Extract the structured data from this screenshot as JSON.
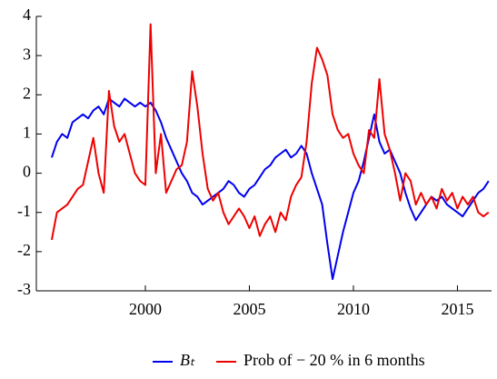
{
  "chart_data": {
    "type": "line",
    "x": [
      1995.5,
      1995.75,
      1996,
      1996.25,
      1996.5,
      1996.75,
      1997,
      1997.25,
      1997.5,
      1997.75,
      1998,
      1998.25,
      1998.5,
      1998.75,
      1999,
      1999.25,
      1999.5,
      1999.75,
      2000,
      2000.25,
      2000.5,
      2000.75,
      2001,
      2001.25,
      2001.5,
      2001.75,
      2002,
      2002.25,
      2002.5,
      2002.75,
      2003,
      2003.25,
      2003.5,
      2003.75,
      2004,
      2004.25,
      2004.5,
      2004.75,
      2005,
      2005.25,
      2005.5,
      2005.75,
      2006,
      2006.25,
      2006.5,
      2006.75,
      2007,
      2007.25,
      2007.5,
      2007.75,
      2008,
      2008.25,
      2008.5,
      2008.75,
      2009,
      2009.25,
      2009.5,
      2009.75,
      2010,
      2010.25,
      2010.5,
      2010.75,
      2011,
      2011.25,
      2011.5,
      2011.75,
      2012,
      2012.25,
      2012.5,
      2012.75,
      2013,
      2013.25,
      2013.5,
      2013.75,
      2014,
      2014.25,
      2014.5,
      2014.75,
      2015,
      2015.25,
      2015.5,
      2015.75,
      2016,
      2016.25,
      2016.5
    ],
    "series": [
      {
        "name": "Bₜ",
        "color": "#0000ee",
        "values": [
          0.4,
          0.8,
          1.0,
          0.9,
          1.3,
          1.4,
          1.5,
          1.4,
          1.6,
          1.7,
          1.5,
          1.9,
          1.8,
          1.7,
          1.9,
          1.8,
          1.7,
          1.8,
          1.7,
          1.8,
          1.6,
          1.3,
          0.9,
          0.6,
          0.3,
          0.0,
          -0.2,
          -0.5,
          -0.6,
          -0.8,
          -0.7,
          -0.6,
          -0.5,
          -0.4,
          -0.2,
          -0.3,
          -0.5,
          -0.6,
          -0.4,
          -0.3,
          -0.1,
          0.1,
          0.2,
          0.4,
          0.5,
          0.6,
          0.4,
          0.5,
          0.7,
          0.5,
          0.0,
          -0.4,
          -0.8,
          -1.8,
          -2.7,
          -2.1,
          -1.5,
          -1.0,
          -0.5,
          -0.2,
          0.3,
          0.9,
          1.5,
          0.8,
          0.5,
          0.6,
          0.3,
          0.0,
          -0.5,
          -0.9,
          -1.2,
          -1.0,
          -0.8,
          -0.6,
          -0.7,
          -0.6,
          -0.8,
          -0.9,
          -1.0,
          -1.1,
          -0.9,
          -0.7,
          -0.5,
          -0.4,
          -0.2
        ]
      },
      {
        "name": "Prob of − 20 % in 6 months",
        "color": "#ee0000",
        "values": [
          -1.7,
          -1.0,
          -0.9,
          -0.8,
          -0.6,
          -0.4,
          -0.3,
          0.3,
          0.9,
          0.0,
          -0.5,
          2.1,
          1.2,
          0.8,
          1.0,
          0.5,
          0.0,
          -0.2,
          -0.3,
          3.8,
          0.0,
          1.0,
          -0.5,
          -0.2,
          0.1,
          0.2,
          0.8,
          2.6,
          1.7,
          0.5,
          -0.4,
          -0.7,
          -0.5,
          -1.0,
          -1.3,
          -1.1,
          -0.9,
          -1.1,
          -1.4,
          -1.1,
          -1.6,
          -1.3,
          -1.1,
          -1.5,
          -1.0,
          -1.2,
          -0.6,
          -0.3,
          -0.1,
          0.8,
          2.3,
          3.2,
          2.9,
          2.5,
          1.5,
          1.1,
          0.9,
          1.0,
          0.5,
          0.2,
          0.0,
          1.1,
          0.9,
          2.4,
          1.0,
          0.6,
          0.0,
          -0.7,
          0.0,
          -0.2,
          -0.8,
          -0.5,
          -0.8,
          -0.6,
          -0.9,
          -0.4,
          -0.7,
          -0.5,
          -0.9,
          -0.6,
          -0.8,
          -0.6,
          -1.0,
          -1.1,
          -1.0
        ]
      }
    ],
    "xlim": [
      1994.76,
      2016.64
    ],
    "xticks": [
      2000,
      2005,
      2010,
      2015
    ],
    "ylim": [
      -3,
      4
    ],
    "yticks": [
      -3,
      -2,
      -1,
      0,
      1,
      2,
      3,
      4
    ],
    "grid": false,
    "legend_position": "bottom"
  }
}
